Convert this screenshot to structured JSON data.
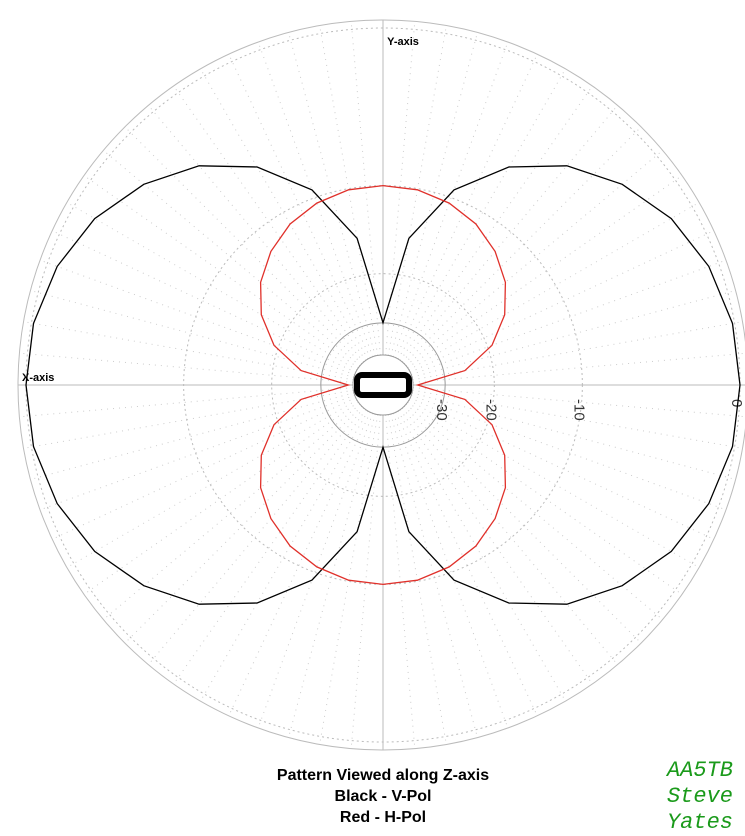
{
  "chart_data": {
    "type": "polar",
    "radial_scale": "arrl",
    "rmax": 0,
    "rticks": [
      -30,
      -20,
      -10,
      0
    ],
    "theta_grid_step": 5,
    "x_axis_label": "X-axis",
    "y_axis_label": "Y-axis",
    "title_lines": [
      "Pattern Viewed along Z-axis",
      "Black - V-Pol",
      "Red - H-Pol"
    ],
    "signature": [
      "AA5TB",
      "Steve",
      "Yates"
    ],
    "theta": [
      0,
      10,
      20,
      30,
      40,
      50,
      60,
      70,
      80,
      90,
      100,
      110,
      120,
      130,
      140,
      150,
      160,
      170,
      180,
      190,
      200,
      210,
      220,
      230,
      240,
      250,
      260,
      270,
      280,
      290,
      300,
      310,
      320,
      330,
      340,
      350
    ],
    "series": [
      {
        "name": "V-Pol",
        "color": "#000000",
        "values": [
          0,
          -0.1,
          -0.5,
          -1.2,
          -2.3,
          -3.8,
          -6,
          -9.3,
          -15,
          -30,
          -15,
          -9.3,
          -6,
          -3.8,
          -2.3,
          -1.2,
          -0.5,
          -0.1,
          0,
          -0.1,
          -0.5,
          -1.2,
          -2.3,
          -3.8,
          -6,
          -9.3,
          -15,
          -30,
          -15,
          -9.3,
          -6,
          -3.8,
          -2.3,
          -1.2,
          -0.5,
          -0.1
        ]
      },
      {
        "name": "H-Pol",
        "color": "#e0302a",
        "values": [
          -40,
          -25,
          -19.3,
          -16,
          -13.8,
          -12.3,
          -11.2,
          -10.5,
          -10.1,
          -10,
          -10.1,
          -10.5,
          -11.2,
          -12.3,
          -13.8,
          -16,
          -19.3,
          -25,
          -40,
          -25,
          -19.3,
          -16,
          -13.8,
          -12.3,
          -11.2,
          -10.5,
          -10.1,
          -10,
          -10.1,
          -10.5,
          -11.2,
          -12.3,
          -13.8,
          -16,
          -19.3,
          -25
        ]
      }
    ]
  }
}
